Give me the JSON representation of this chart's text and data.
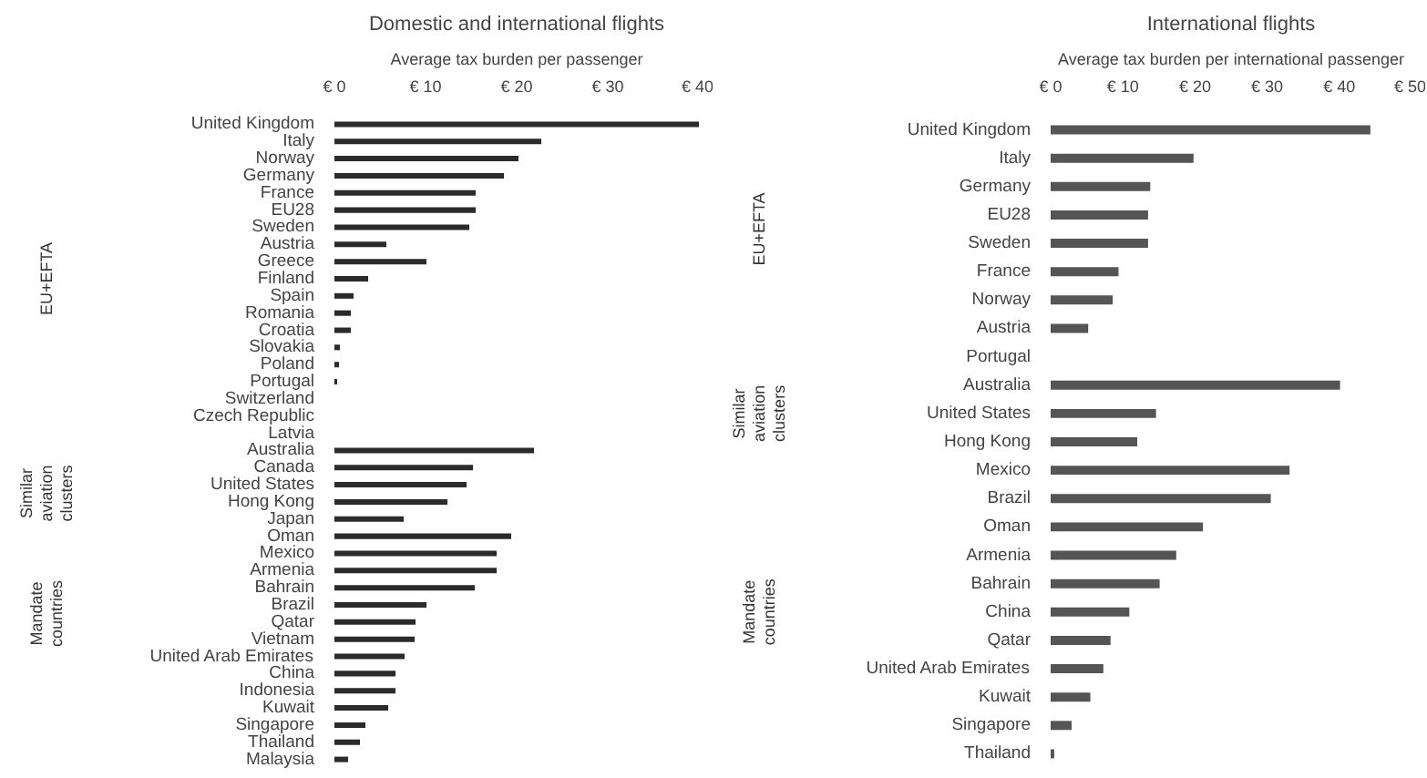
{
  "chart_data": [
    {
      "type": "bar",
      "orientation": "horizontal",
      "title": "Domestic and international flights",
      "xlabel": "Average tax burden per passenger",
      "color": "#2b2b2b",
      "categories": [
        "United Kingdom",
        "Italy",
        "Norway",
        "Germany",
        "France",
        "EU28",
        "Sweden",
        "Austria",
        "Greece",
        "Finland",
        "Spain",
        "Romania",
        "Croatia",
        "Slovakia",
        "Poland",
        "Portugal",
        "Switzerland",
        "Czech Republic",
        "Latvia",
        "Australia",
        "Canada",
        "United States",
        "Hong Kong",
        "Japan",
        "Oman",
        "Mexico",
        "Armenia",
        "Bahrain",
        "Brazil",
        "Qatar",
        "Vietnam",
        "United Arab Emirates",
        "China",
        "Indonesia",
        "Kuwait",
        "Singapore",
        "Thailand",
        "Malaysia"
      ],
      "values": [
        40.0,
        22.7,
        20.2,
        18.6,
        15.5,
        15.5,
        14.8,
        5.7,
        10.1,
        3.7,
        2.1,
        1.8,
        1.8,
        0.6,
        0.5,
        0.3,
        0,
        0,
        0,
        21.9,
        15.2,
        14.5,
        12.4,
        7.6,
        19.4,
        17.8,
        17.8,
        15.4,
        10.1,
        8.9,
        8.8,
        7.7,
        6.7,
        6.7,
        5.9,
        3.4,
        2.8,
        1.5
      ],
      "xlim": [
        0,
        40
      ],
      "xticks": [
        {
          "value": 0,
          "label": "€ 0"
        },
        {
          "value": 10,
          "label": "€ 10"
        },
        {
          "value": 20,
          "label": "€ 20"
        },
        {
          "value": 30,
          "label": "€ 30"
        },
        {
          "value": 40,
          "label": "€ 40"
        }
      ],
      "annotations": [
        "EU+EFTA",
        "Similar aviation clusters",
        "Mandate countries"
      ]
    },
    {
      "type": "bar",
      "orientation": "horizontal",
      "title": "International flights",
      "xlabel": "Average tax burden per international passenger",
      "color": "#555555",
      "categories": [
        "United Kingdom",
        "Italy",
        "Germany",
        "EU28",
        "Sweden",
        "France",
        "Norway",
        "Austria",
        "Portugal",
        "Australia",
        "United States",
        "Hong Kong",
        "Mexico",
        "Brazil",
        "Oman",
        "Armenia",
        "Bahrain",
        "China",
        "Qatar",
        "United Arab Emirates",
        "Kuwait",
        "Singapore",
        "Thailand"
      ],
      "values": [
        44.3,
        19.8,
        13.8,
        13.5,
        13.5,
        9.4,
        8.6,
        5.2,
        0,
        40.1,
        14.6,
        12.0,
        33.1,
        30.5,
        21.1,
        17.4,
        15.1,
        10.9,
        8.3,
        7.3,
        5.5,
        2.9,
        0.5
      ],
      "xlim": [
        0,
        50
      ],
      "xticks": [
        {
          "value": 0,
          "label": "€ 0"
        },
        {
          "value": 10,
          "label": "€ 10"
        },
        {
          "value": 20,
          "label": "€ 20"
        },
        {
          "value": 30,
          "label": "€ 30"
        },
        {
          "value": 40,
          "label": "€ 40"
        },
        {
          "value": 50,
          "label": "€ 50"
        }
      ],
      "annotations": [
        "EU+EFTA",
        "Similar aviation clusters",
        "Mandate countries"
      ]
    }
  ]
}
